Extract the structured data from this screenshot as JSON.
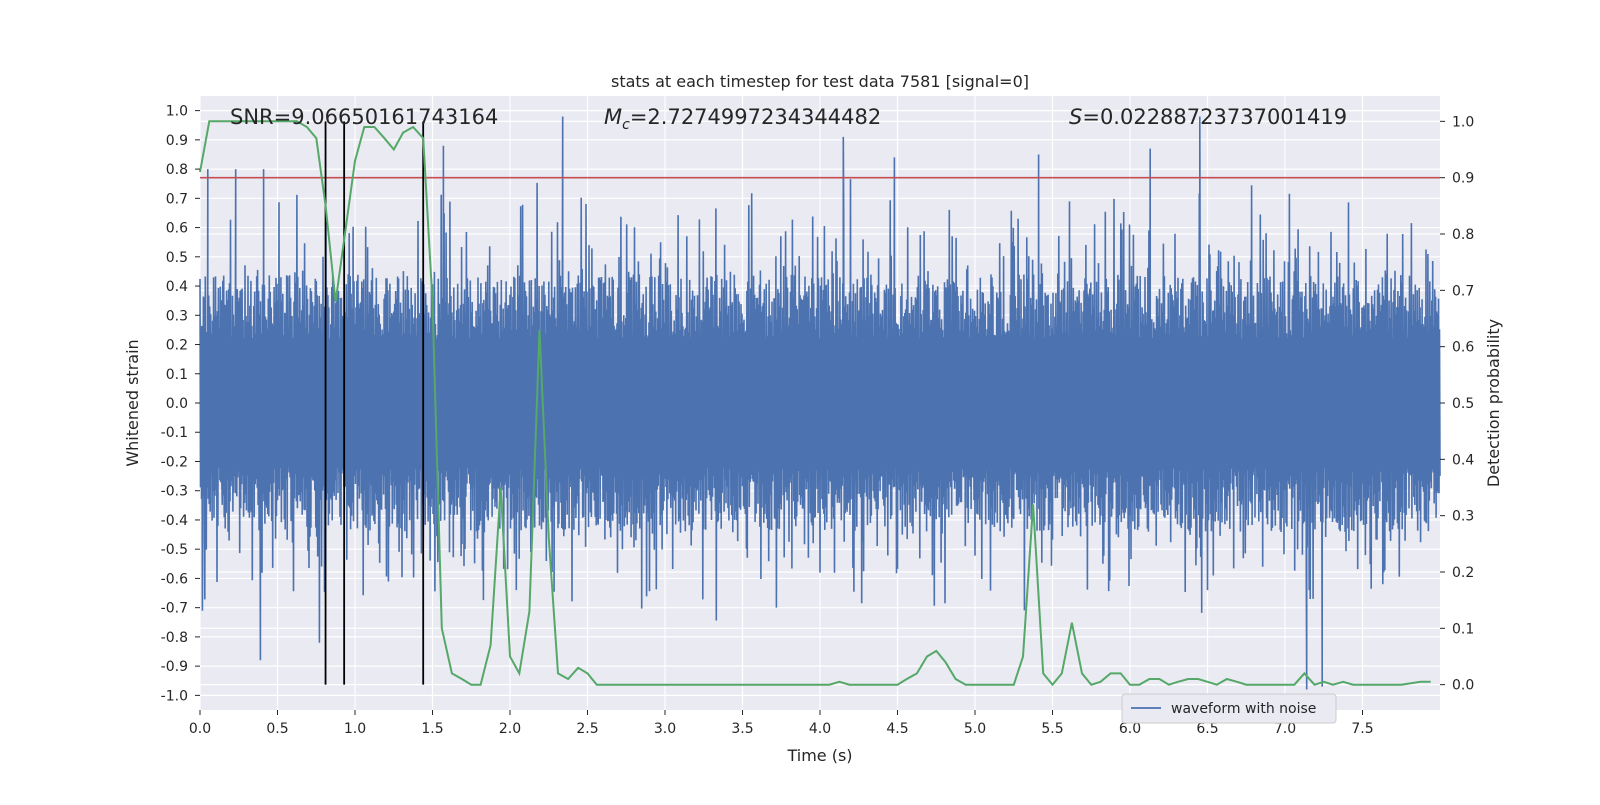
{
  "chart_data": {
    "type": "line",
    "title": "stats at each timestep for test data 7581 [signal=0]",
    "xlabel": "Time (s)",
    "ylabel_left": "Whitened strain",
    "ylabel_right": "Detection probability",
    "xlim": [
      0,
      8.0
    ],
    "ylim_left": [
      -1.05,
      1.05
    ],
    "ylim_right": [
      -0.045,
      1.045
    ],
    "x_ticks": [
      "0.0",
      "0.5",
      "1.0",
      "1.5",
      "2.0",
      "2.5",
      "3.0",
      "3.5",
      "4.0",
      "4.5",
      "5.0",
      "5.5",
      "6.0",
      "6.5",
      "7.0",
      "7.5"
    ],
    "y_left_ticks": [
      "-1.0",
      "-0.9",
      "-0.8",
      "-0.7",
      "-0.6",
      "-0.5",
      "-0.4",
      "-0.3",
      "-0.2",
      "-0.1",
      "0.0",
      "0.1",
      "0.2",
      "0.3",
      "0.4",
      "0.5",
      "0.6",
      "0.7",
      "0.8",
      "0.9",
      "1.0"
    ],
    "y_right_ticks": [
      "0.0",
      "0.1",
      "0.2",
      "0.3",
      "0.4",
      "0.5",
      "0.6",
      "0.7",
      "0.8",
      "0.9",
      "1.0"
    ],
    "grid": true,
    "legend": {
      "placement": "lower-right",
      "entries": [
        "waveform with noise"
      ]
    },
    "annotations": {
      "snr": "SNR=9.06650161743164",
      "mc_symbol": "M",
      "mc_sub": "c",
      "mc_value": "=2.7274997234344482",
      "s_symbol": "S",
      "s_value": "=0.02288723737001419"
    },
    "threshold": {
      "axis": "right",
      "value": 0.9,
      "color": "#c44e52"
    },
    "event_lines_x": [
      0.81,
      0.93,
      1.44
    ],
    "waveform": {
      "name": "waveform with noise",
      "color": "#4c72b0",
      "sample_rate_hz": 2048,
      "envelope_abs_mean": 0.35,
      "notable_peaks": [
        {
          "x": 0.05,
          "y": 0.8
        },
        {
          "x": 0.23,
          "y": 0.8
        },
        {
          "x": 0.41,
          "y": 0.8
        },
        {
          "x": 1.57,
          "y": 0.88
        },
        {
          "x": 2.34,
          "y": 0.98
        },
        {
          "x": 4.15,
          "y": 0.91
        },
        {
          "x": 4.48,
          "y": 0.84
        },
        {
          "x": 5.41,
          "y": 0.85
        },
        {
          "x": 6.13,
          "y": 0.87
        },
        {
          "x": 6.45,
          "y": 0.98
        },
        {
          "x": 0.39,
          "y": -0.88
        },
        {
          "x": 0.77,
          "y": -0.82
        },
        {
          "x": 7.14,
          "y": -0.98
        },
        {
          "x": 7.24,
          "y": -0.97
        }
      ]
    },
    "detection_probability": {
      "color": "#55a868",
      "x": [
        0.0,
        0.06,
        0.125,
        0.19,
        0.25,
        0.31,
        0.375,
        0.44,
        0.5,
        0.56,
        0.625,
        0.69,
        0.75,
        0.81,
        0.875,
        0.94,
        1.0,
        1.06,
        1.125,
        1.19,
        1.25,
        1.31,
        1.375,
        1.44,
        1.5,
        1.56,
        1.625,
        1.69,
        1.75,
        1.81,
        1.875,
        1.94,
        2.0,
        2.06,
        2.125,
        2.19,
        2.25,
        2.31,
        2.375,
        2.44,
        2.5,
        2.56,
        2.625,
        2.69,
        2.75,
        2.81,
        2.875,
        2.94,
        3.0,
        3.25,
        3.5,
        3.75,
        3.94,
        4.06,
        4.125,
        4.19,
        4.25,
        4.375,
        4.5,
        4.56,
        4.625,
        4.69,
        4.75,
        4.81,
        4.875,
        4.94,
        5.0,
        5.06,
        5.125,
        5.19,
        5.25,
        5.31,
        5.375,
        5.44,
        5.5,
        5.56,
        5.625,
        5.69,
        5.75,
        5.81,
        5.875,
        5.94,
        6.0,
        6.06,
        6.125,
        6.19,
        6.25,
        6.31,
        6.375,
        6.44,
        6.5,
        6.56,
        6.625,
        6.69,
        6.75,
        6.81,
        6.875,
        6.94,
        7.0,
        7.06,
        7.125,
        7.19,
        7.25,
        7.31,
        7.375,
        7.44,
        7.5,
        7.625,
        7.75,
        7.875,
        7.94
      ],
      "y": [
        0.91,
        1.0,
        1.0,
        1.0,
        1.0,
        1.0,
        1.0,
        1.0,
        1.0,
        1.0,
        1.0,
        0.99,
        0.97,
        0.85,
        0.68,
        0.81,
        0.93,
        0.99,
        0.99,
        0.97,
        0.95,
        0.98,
        0.99,
        0.97,
        0.68,
        0.1,
        0.02,
        0.01,
        0.0,
        0.0,
        0.07,
        0.35,
        0.05,
        0.02,
        0.13,
        0.63,
        0.26,
        0.02,
        0.01,
        0.03,
        0.02,
        0.0,
        0.0,
        0.0,
        0.0,
        0.0,
        0.0,
        0.0,
        0.0,
        0.0,
        0.0,
        0.0,
        0.0,
        0.0,
        0.005,
        0.0,
        0.0,
        0.0,
        0.0,
        0.01,
        0.02,
        0.05,
        0.06,
        0.04,
        0.01,
        0.0,
        0.0,
        0.0,
        0.0,
        0.0,
        0.0,
        0.05,
        0.32,
        0.02,
        0.0,
        0.02,
        0.11,
        0.02,
        0.0,
        0.005,
        0.02,
        0.02,
        0.0,
        0.0,
        0.01,
        0.01,
        0.0,
        0.005,
        0.01,
        0.01,
        0.005,
        0.0,
        0.01,
        0.005,
        0.0,
        0.0,
        0.0,
        0.0,
        0.0,
        0.0,
        0.02,
        0.0,
        0.005,
        0.0,
        0.005,
        0.0,
        0.0,
        0.0,
        0.0,
        0.005,
        0.005
      ]
    }
  }
}
